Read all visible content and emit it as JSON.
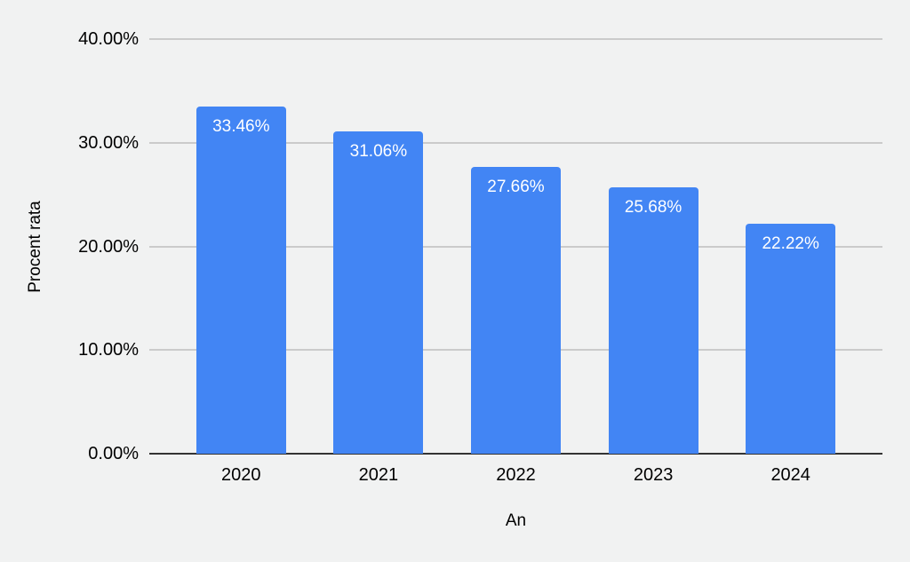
{
  "chart_data": {
    "type": "bar",
    "title": "",
    "xlabel": "An",
    "ylabel": "Procent rata",
    "categories": [
      "2020",
      "2021",
      "2022",
      "2023",
      "2024"
    ],
    "values": [
      33.46,
      31.06,
      27.66,
      25.68,
      22.22
    ],
    "data_labels": [
      "33.46%",
      "31.06%",
      "27.66%",
      "25.68%",
      "22.22%"
    ],
    "ylim": [
      0,
      40
    ],
    "yticks": [
      {
        "value": 40,
        "label": "40.00%"
      },
      {
        "value": 30,
        "label": "30.00%"
      },
      {
        "value": 20,
        "label": "20.00%"
      },
      {
        "value": 10,
        "label": "10.00%"
      },
      {
        "value": 0,
        "label": "0.00%"
      }
    ],
    "grid": true,
    "legend": "none",
    "colors": {
      "background": "#F1F2F2",
      "bar": "#4285F4",
      "bar_label_text": "#FFFFFF",
      "gridline": "#CBCBCB",
      "axis_line": "#333333",
      "text": "#000000"
    }
  }
}
